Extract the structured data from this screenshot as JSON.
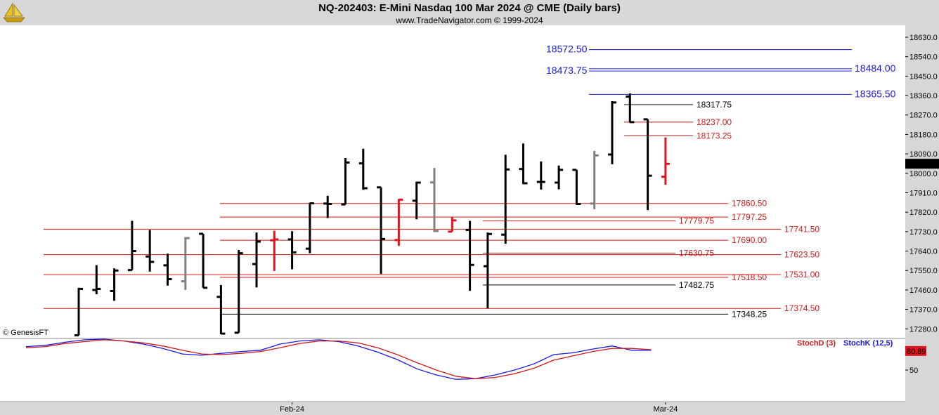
{
  "header": {
    "title": "NQ-202403:  E-Mini Nasdaq 100 Mar 2024 @ CME  (Daily bars)",
    "subtitle": "www.TradeNavigator.com © 1999-2024"
  },
  "watermark": "© GenesisFT",
  "colors": {
    "up": "#000000",
    "down": "#000000",
    "red_bar": "#e0141e",
    "gray_bar": "#808080",
    "level_red": "#d01818",
    "level_black": "#000000",
    "level_blue": "#1a1adc",
    "stochD": "#d01818",
    "stochK": "#1a1adc"
  },
  "chart_data": [
    {
      "type": "ohlc",
      "title": "NQ-202403:  E-Mini Nasdaq 100 Mar 2024 @ CME  (Daily bars)",
      "y_ticks": [
        "18630.0",
        "18540.0",
        "18450.0",
        "18360.0",
        "18270.0",
        "18180.0",
        "18090.0",
        "18000.0",
        "17910.0",
        "17820.0",
        "17730.0",
        "17640.0",
        "17550.0",
        "17460.0",
        "17370.0",
        "17280.0"
      ],
      "ylim": [
        17242,
        18669
      ],
      "last_price": "18044.25",
      "x_labels": [
        {
          "label": "Feb-24",
          "bar_index": 12
        },
        {
          "label": "Mar-24",
          "bar_index": 33
        }
      ],
      "bars": [
        {
          "o": 17250,
          "h": 17470,
          "l": 17250,
          "c": 17465,
          "color": "black"
        },
        {
          "o": 17460,
          "h": 17575,
          "l": 17440,
          "c": 17465,
          "color": "black"
        },
        {
          "o": 17455,
          "h": 17560,
          "l": 17410,
          "c": 17550,
          "color": "black"
        },
        {
          "o": 17552,
          "h": 17780,
          "l": 17552,
          "c": 17640,
          "color": "black"
        },
        {
          "o": 17615,
          "h": 17738,
          "l": 17545,
          "c": 17590,
          "color": "black"
        },
        {
          "o": 17574,
          "h": 17628,
          "l": 17480,
          "c": 17510,
          "color": "black"
        },
        {
          "o": 17500,
          "h": 17705,
          "l": 17460,
          "c": 17700,
          "color": "gray"
        },
        {
          "o": 17720,
          "h": 17720,
          "l": 17470,
          "c": 17470,
          "color": "black"
        },
        {
          "o": 17428,
          "h": 17483,
          "l": 17255,
          "c": 17258,
          "color": "black"
        },
        {
          "o": 17262,
          "h": 17645,
          "l": 17262,
          "c": 17630,
          "color": "black"
        },
        {
          "o": 17580,
          "h": 17726,
          "l": 17472,
          "c": 17684,
          "color": "black"
        },
        {
          "o": 17690,
          "h": 17734,
          "l": 17548,
          "c": 17694,
          "color": "red"
        },
        {
          "o": 17694,
          "h": 17732,
          "l": 17556,
          "c": 17634,
          "color": "black"
        },
        {
          "o": 17651,
          "h": 17864,
          "l": 17630,
          "c": 17861,
          "color": "black"
        },
        {
          "o": 17860,
          "h": 17896,
          "l": 17793,
          "c": 17858,
          "color": "black"
        },
        {
          "o": 17856,
          "h": 18071,
          "l": 17856,
          "c": 18050,
          "color": "black"
        },
        {
          "o": 18046,
          "h": 18114,
          "l": 17924,
          "c": 17931,
          "color": "black"
        },
        {
          "o": 17935,
          "h": 17935,
          "l": 17534,
          "c": 17696,
          "color": "black"
        },
        {
          "o": 17691,
          "h": 17881,
          "l": 17664,
          "c": 17878,
          "color": "red"
        },
        {
          "o": 17873,
          "h": 17961,
          "l": 17787,
          "c": 17957,
          "color": "black"
        },
        {
          "o": 17958,
          "h": 18025,
          "l": 17728,
          "c": 17733,
          "color": "gray"
        },
        {
          "o": 17730,
          "h": 17798,
          "l": 17730,
          "c": 17782,
          "color": "red"
        },
        {
          "o": 17738,
          "h": 17780,
          "l": 17456,
          "c": 17576,
          "color": "black"
        },
        {
          "o": 17570,
          "h": 17726,
          "l": 17375,
          "c": 17719,
          "color": "black"
        },
        {
          "o": 17716,
          "h": 18086,
          "l": 17674,
          "c": 18018,
          "color": "black"
        },
        {
          "o": 18020,
          "h": 18138,
          "l": 17950,
          "c": 17954,
          "color": "black"
        },
        {
          "o": 17960,
          "h": 18055,
          "l": 17925,
          "c": 17960,
          "color": "black"
        },
        {
          "o": 17957,
          "h": 18036,
          "l": 17926,
          "c": 18016,
          "color": "black"
        },
        {
          "o": 18016,
          "h": 18016,
          "l": 17854,
          "c": 17858,
          "color": "black"
        },
        {
          "o": 17860,
          "h": 18104,
          "l": 17834,
          "c": 18083,
          "color": "gray"
        },
        {
          "o": 18087,
          "h": 18334,
          "l": 18042,
          "c": 18328,
          "color": "black"
        },
        {
          "o": 18355,
          "h": 18370,
          "l": 18234,
          "c": 18237,
          "color": "black"
        },
        {
          "o": 18250,
          "h": 18250,
          "l": 17830,
          "c": 17989,
          "color": "black"
        },
        {
          "o": 17984,
          "h": 18166,
          "l": 17947,
          "c": 18044,
          "color": "red"
        }
      ],
      "levels": [
        {
          "label": "18572.50",
          "value": 18572.5,
          "color": "blue",
          "side": "left"
        },
        {
          "label": "18484.00",
          "value": 18484.0,
          "color": "blue",
          "side": "right"
        },
        {
          "label": "18473.75",
          "value": 18473.75,
          "color": "blue",
          "side": "left"
        },
        {
          "label": "18365.50",
          "value": 18365.5,
          "color": "blue",
          "side": "right"
        },
        {
          "label": "18317.75",
          "value": 18317.75,
          "color": "black",
          "side": "mid"
        },
        {
          "label": "18237.00",
          "value": 18237.0,
          "color": "red",
          "side": "mid"
        },
        {
          "label": "18173.25",
          "value": 18173.25,
          "color": "red",
          "side": "mid"
        },
        {
          "label": "17860.50",
          "value": 17860.5,
          "color": "red",
          "side": "mid"
        },
        {
          "label": "17797.25",
          "value": 17797.25,
          "color": "red",
          "side": "mid"
        },
        {
          "label": "17779.75",
          "value": 17779.75,
          "color": "red",
          "side": "mid"
        },
        {
          "label": "17741.50",
          "value": 17741.5,
          "color": "red",
          "side": "mid"
        },
        {
          "label": "17690.00",
          "value": 17690.0,
          "color": "red",
          "side": "mid"
        },
        {
          "label": "17630.75",
          "value": 17630.75,
          "color": "red",
          "side": "mid"
        },
        {
          "label": "17623.50",
          "value": 17623.5,
          "color": "red",
          "side": "mid"
        },
        {
          "label": "17531.00",
          "value": 17531.0,
          "color": "red",
          "side": "mid"
        },
        {
          "label": "17518.50",
          "value": 17518.5,
          "color": "red",
          "side": "mid"
        },
        {
          "label": "17482.75",
          "value": 17482.75,
          "color": "black",
          "side": "mid"
        },
        {
          "label": "17374.50",
          "value": 17374.5,
          "color": "red",
          "side": "mid"
        },
        {
          "label": "17348.25",
          "value": 17348.25,
          "color": "black",
          "side": "mid"
        }
      ]
    },
    {
      "type": "line",
      "title": "",
      "legend": [
        "StochD (3)",
        "StochK (12,5)"
      ],
      "y_ticks": [
        "50"
      ],
      "ylim": [
        0,
        100
      ],
      "last_value": "80.89",
      "series": [
        {
          "name": "StochK (12,5)",
          "color": "blue",
          "values": [
            88,
            90,
            95,
            99,
            100,
            97,
            92,
            85,
            76,
            74,
            77,
            80,
            82,
            92,
            97,
            99,
            96,
            89,
            79,
            67,
            52,
            42,
            35,
            36,
            42,
            50,
            60,
            75,
            78,
            84,
            89,
            82,
            82
          ]
        },
        {
          "name": "StochD (3)",
          "color": "red",
          "values": [
            86,
            88,
            93,
            96,
            99,
            97,
            94,
            89,
            82,
            76,
            75,
            77,
            80,
            86,
            93,
            97,
            97,
            94,
            86,
            75,
            62,
            50,
            40,
            36,
            38,
            44,
            53,
            66,
            73,
            80,
            85,
            85,
            83
          ]
        }
      ]
    }
  ]
}
